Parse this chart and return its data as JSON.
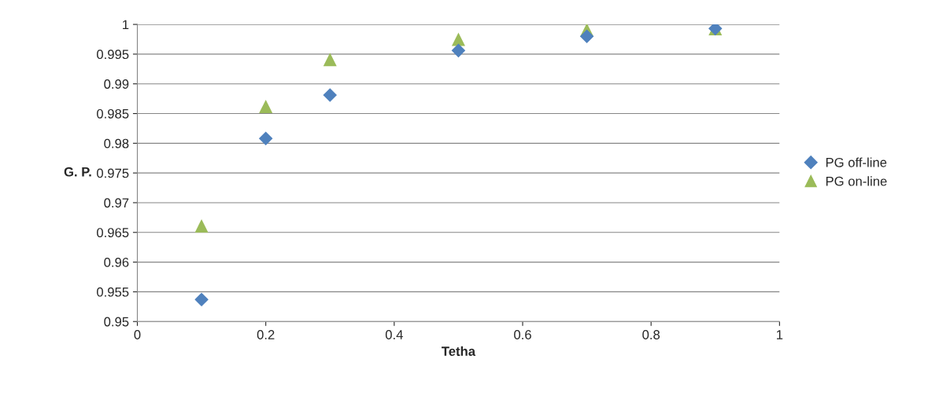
{
  "chart_data": {
    "type": "scatter",
    "xlabel": "Tetha",
    "ylabel": "G. P.",
    "x": [
      0.1,
      0.2,
      0.3,
      0.5,
      0.7,
      0.9
    ],
    "series": [
      {
        "name": "PG off-line",
        "color": "#4f81bd",
        "marker": "diamond",
        "values": [
          0.9537,
          0.9808,
          0.9881,
          0.9956,
          0.998,
          0.9993
        ]
      },
      {
        "name": "PG on-line",
        "color": "#9bbb59",
        "marker": "triangle",
        "values": [
          0.9661,
          0.9862,
          0.9941,
          0.9975,
          0.9991,
          0.9993
        ]
      }
    ],
    "xlim": [
      0,
      1
    ],
    "xticks": [
      0,
      0.2,
      0.4,
      0.6,
      0.8,
      1
    ],
    "ylim": [
      0.95,
      1
    ],
    "yticks": [
      0.95,
      0.955,
      0.96,
      0.965,
      0.97,
      0.975,
      0.98,
      0.985,
      0.99,
      0.995,
      1
    ],
    "grid": "y",
    "legend": "right"
  }
}
